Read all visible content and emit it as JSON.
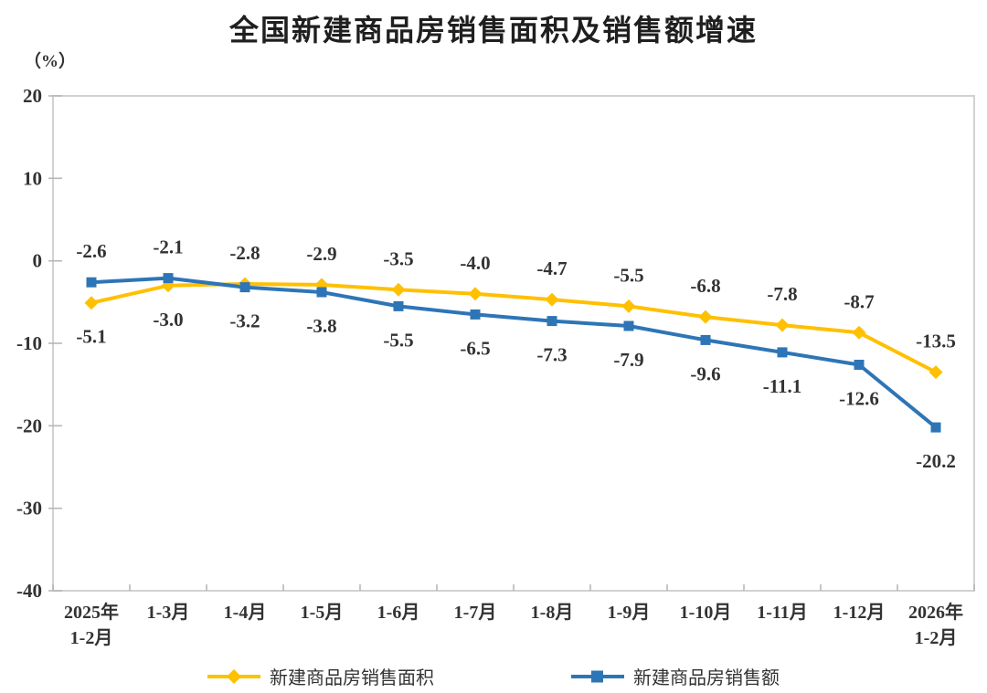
{
  "title": "全国新建商品房销售面积及销售额增速",
  "unit_label": "（%）",
  "chart_data": {
    "type": "line",
    "categories": [
      "2025年\n1-2月",
      "1-3月",
      "1-4月",
      "1-5月",
      "1-6月",
      "1-7月",
      "1-8月",
      "1-9月",
      "1-10月",
      "1-11月",
      "1-12月",
      "2026年\n1-2月"
    ],
    "series": [
      {
        "name": "新建商品房销售面积",
        "marker": "diamond",
        "color": "#FFC000",
        "values": [
          -5.1,
          -3.0,
          -2.8,
          -2.9,
          -3.5,
          -4.0,
          -4.7,
          -5.5,
          -6.8,
          -7.8,
          -8.7,
          -13.5
        ]
      },
      {
        "name": "新建商品房销售额",
        "marker": "square",
        "color": "#2E75B6",
        "values": [
          -2.6,
          -2.1,
          -3.2,
          -3.8,
          -5.5,
          -6.5,
          -7.3,
          -7.9,
          -9.6,
          -11.1,
          -12.6,
          -20.2
        ]
      }
    ],
    "ylabel_unit": "（%）",
    "ylim": [
      -40,
      20
    ],
    "yticks": [
      20,
      10,
      0,
      -10,
      -20,
      -30,
      -40
    ],
    "grid": false,
    "data_labels": true,
    "legend_position": "bottom",
    "axis_color": "#D2D2D2",
    "tick_color": "#B7B7B7",
    "label_color": "#333333"
  }
}
